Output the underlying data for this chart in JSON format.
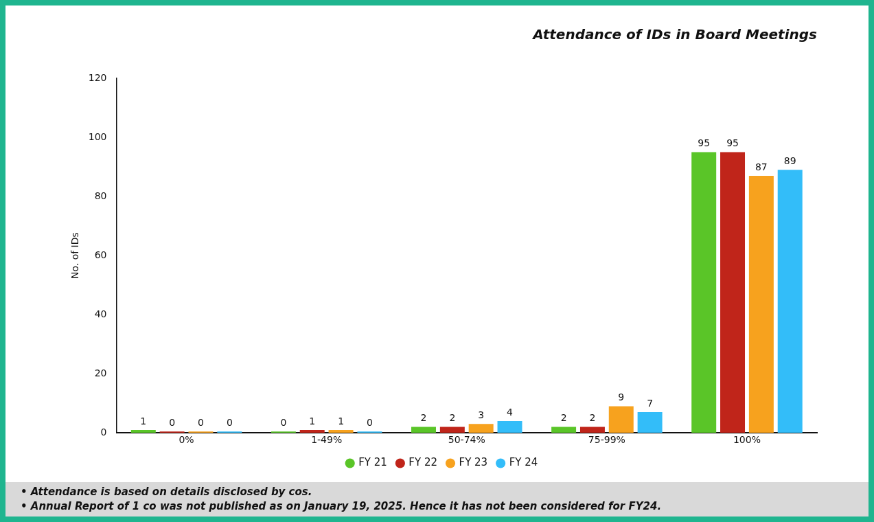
{
  "chart_data": {
    "type": "bar",
    "title": "Attendance of IDs in Board Meetings",
    "ylabel": "No. of IDs",
    "categories": [
      "0%",
      "1-49%",
      "50-74%",
      "75-99%",
      "100%"
    ],
    "series": [
      {
        "name": "FY 21",
        "color": "#5ac528",
        "values": [
          1,
          0,
          2,
          2,
          95
        ]
      },
      {
        "name": "FY 22",
        "color": "#c0251a",
        "values": [
          0,
          1,
          2,
          2,
          95
        ]
      },
      {
        "name": "FY 23",
        "color": "#f7a21e",
        "values": [
          0,
          1,
          3,
          9,
          87
        ]
      },
      {
        "name": "FY 24",
        "color": "#33bdf9",
        "values": [
          0,
          0,
          4,
          7,
          89
        ]
      }
    ],
    "ylim": [
      0,
      120
    ],
    "yticks": [
      0,
      20,
      40,
      60,
      80,
      100,
      120
    ],
    "legend": "bottom",
    "data_labels": true,
    "annotations": [
      "•  Attendance is based on details disclosed by cos.",
      "•  Annual Report of 1 co was not published as on January 19, 2025. Hence it has not been considered for FY24."
    ]
  }
}
